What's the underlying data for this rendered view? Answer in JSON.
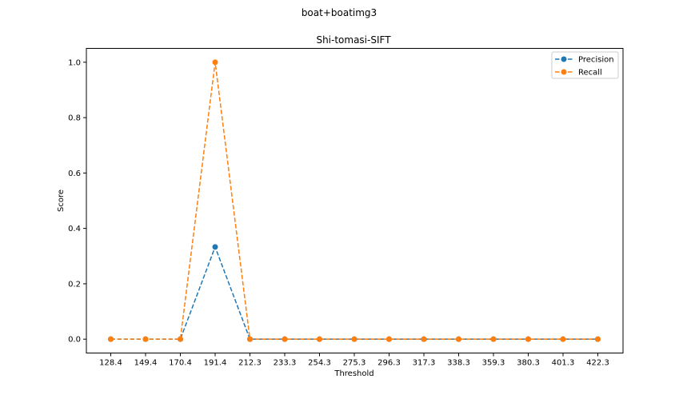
{
  "figure": {
    "suptitle": "boat+boatimg3"
  },
  "chart_data": {
    "type": "line",
    "title": "Shi-tomasi-SIFT",
    "xlabel": "Threshold",
    "ylabel": "Score",
    "categories": [
      "128.4",
      "149.4",
      "170.4",
      "191.4",
      "212.3",
      "233.3",
      "254.3",
      "275.3",
      "296.3",
      "317.3",
      "338.3",
      "359.3",
      "380.3",
      "401.3",
      "422.3"
    ],
    "yticks": [
      "0.0",
      "0.2",
      "0.4",
      "0.6",
      "0.8",
      "1.0"
    ],
    "ylim": [
      -0.05,
      1.05
    ],
    "grid": false,
    "legend_position": "top-right",
    "series": [
      {
        "name": "Precision",
        "color": "#1f77b4",
        "marker": "circle",
        "linestyle": "dashed",
        "values": [
          0,
          0,
          0,
          0.333,
          0,
          0,
          0,
          0,
          0,
          0,
          0,
          0,
          0,
          0,
          0
        ]
      },
      {
        "name": "Recall",
        "color": "#ff7f0e",
        "marker": "circle",
        "linestyle": "dashed",
        "values": [
          0,
          0,
          0,
          1.0,
          0,
          0,
          0,
          0,
          0,
          0,
          0,
          0,
          0,
          0,
          0
        ]
      }
    ]
  }
}
